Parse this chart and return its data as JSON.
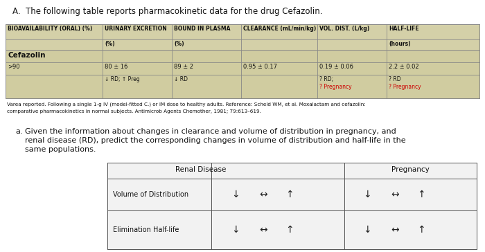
{
  "title": "A.  The following table reports pharmacokinetic data for the drug Cefazolin.",
  "bg_color": "#ffffff",
  "table1_bg": "#d4d0a8",
  "table1_row_bg": "#c8c4a0",
  "table2_bg": "#f0f0f0",
  "border_color": "#888888",
  "red_color": "#cc0000",
  "dark_color": "#111111",
  "header1_texts": [
    "BIOAVAILABILITY (ORAL) (%)",
    "URINARY EXCRETION",
    "BOUND IN PLASMA",
    "CLEARANCE (mL/min/kg)",
    "VOL. DIST. (L/kg)",
    "HALF-LIFE"
  ],
  "header2_texts": [
    "",
    "(%)",
    "(%)",
    "",
    "",
    "(hours)"
  ],
  "drug_label": "Cefazolin",
  "data_row1": [
    ">90",
    "80 ± 16",
    "89 ± 2",
    "0.95 ± 0.17",
    "0.19 ± 0.06",
    "2.2 ± 0.02"
  ],
  "data_row2_col2": "↓ RD; ↑ Preg",
  "data_row2_col3": "↓ RD",
  "data_row2_col5": "? RD;",
  "data_row2_col6": "? RD",
  "data_row3_col5": "? Pregnancy",
  "data_row3_col6": "? Pregnancy",
  "footnote1": "Varea reported. Following a single 1-g IV (model-fitted C.) or IM dose to healthy adults. Reference: Scheld WM, et al. Moxalactam and cefazolin:",
  "footnote2": "comparative pharmacokinetics in normal subjects. Antimicrob Agents Chemother, 1981; 79:613–619.",
  "question_a": "a.",
  "question_line1": "Given the information about changes in clearance and volume of distribution in pregnancy, and",
  "question_line2": "renal disease (RD), predict the corresponding changes in volume of distribution and half-life in the",
  "question_line3": "same populations.",
  "t2_header_rd": "Renal Disease",
  "t2_header_preg": "Pregnancy",
  "t2_row1_label": "Volume of Distribution",
  "t2_row2_label": "Elimination Half-life",
  "arrows": [
    "↓",
    "↔",
    "↑"
  ]
}
